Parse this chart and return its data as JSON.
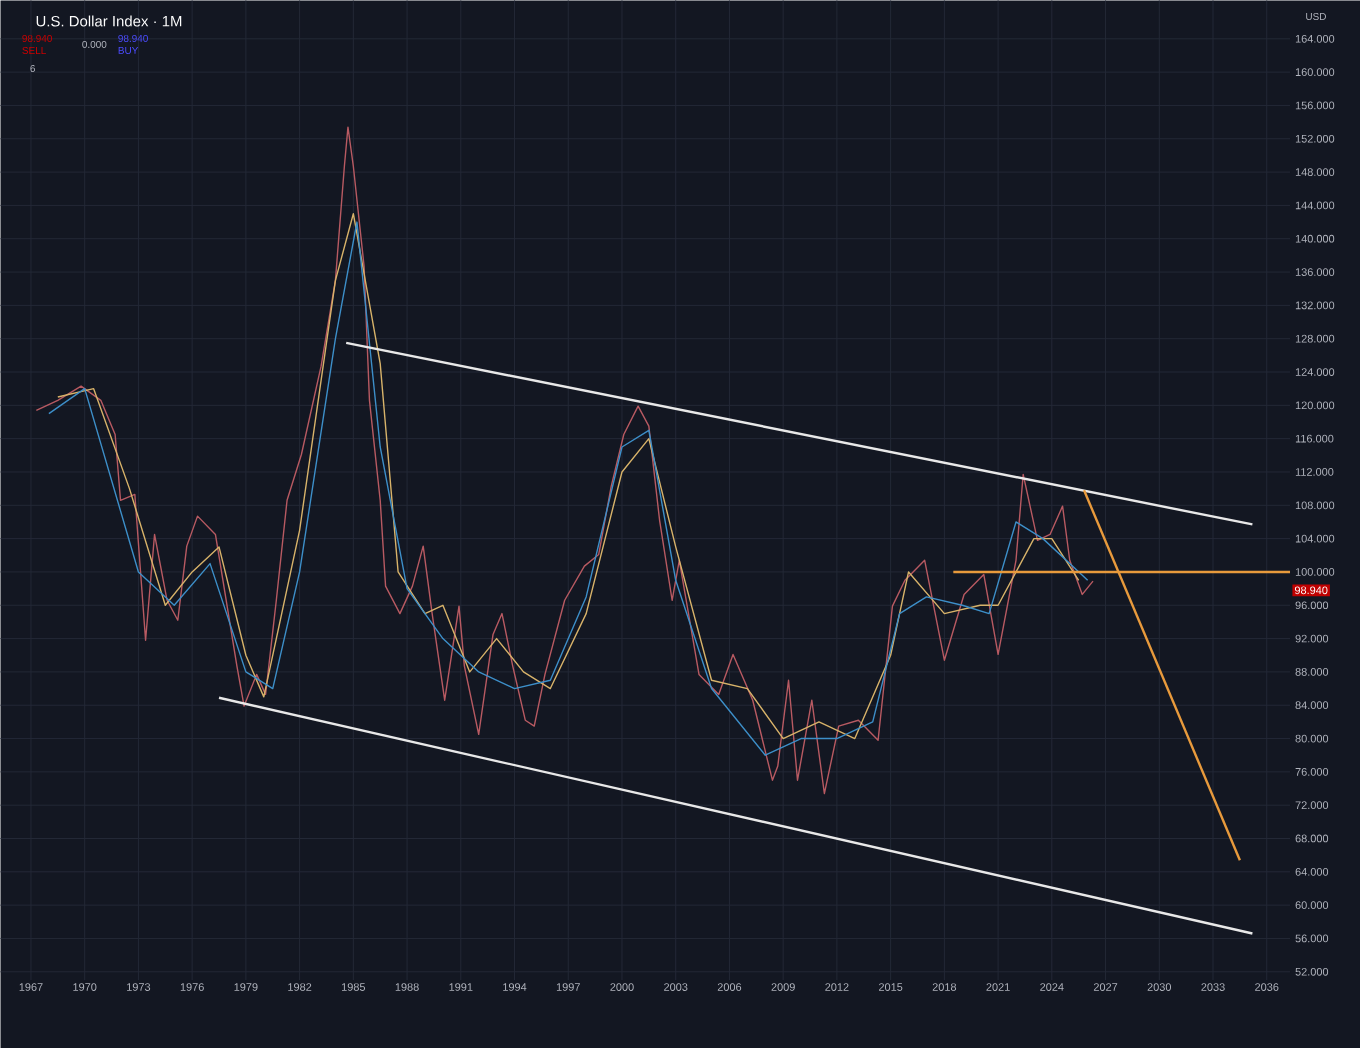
{
  "chart_data": {
    "type": "line",
    "title": "U.S. Dollar Index · 1M",
    "x": [
      1967.3,
      1968.5,
      1969.8,
      1970.9,
      1971.7,
      1972.0,
      1972.8,
      1973.4,
      1973.9,
      1974.6,
      1975.2,
      1975.7,
      1976.3,
      1977.3,
      1977.9,
      1978.5,
      1978.9,
      1979.6,
      1980.1,
      1980.7,
      1981.3,
      1982.1,
      1983.2,
      1984.0,
      1984.5,
      1984.7,
      1985.0,
      1985.6,
      1985.9,
      1986.5,
      1986.8,
      1987.6,
      1988.3,
      1988.9,
      1989.4,
      1990.1,
      1990.9,
      1991.2,
      1992.0,
      1992.8,
      1993.3,
      1993.9,
      1994.6,
      1995.1,
      1995.7,
      1996.8,
      1997.9,
      1998.7,
      1999.4,
      2000.1,
      2000.9,
      2001.5,
      2002.1,
      2002.8,
      2003.2,
      2004.3,
      2005.4,
      2006.2,
      2007.3,
      2008.4,
      2008.7,
      2009.3,
      2009.8,
      2010.6,
      2011.3,
      2012.1,
      2013.2,
      2014.3,
      2015.1,
      2015.8,
      2016.9,
      2018.0,
      2019.1,
      2020.2,
      2021.0,
      2022.0,
      2022.4,
      2023.2,
      2023.9,
      2024.6,
      2025.0,
      2025.7,
      2026.3
    ],
    "series": [
      {
        "color": "#b85a62",
        "values": [
          119.4,
          120.6,
          122.3,
          120.6,
          116.5,
          108.6,
          109.3,
          91.8,
          104.5,
          96.6,
          94.2,
          103.1,
          106.7,
          104.5,
          96.6,
          88.7,
          83.9,
          87.7,
          85.3,
          96.6,
          108.6,
          114.1,
          124.7,
          135.0,
          148.7,
          153.4,
          148.7,
          136.7,
          120.6,
          108.6,
          98.3,
          95.0,
          98.3,
          103.1,
          95.0,
          84.6,
          95.9,
          88.7,
          80.5,
          92.5,
          95.0,
          88.7,
          82.2,
          81.5,
          87.7,
          96.6,
          100.7,
          102.1,
          110.3,
          116.5,
          119.9,
          117.5,
          106.2,
          96.6,
          101.4,
          87.7,
          85.3,
          90.1,
          84.6,
          75.0,
          76.7,
          87.0,
          75.0,
          84.6,
          73.4,
          81.5,
          82.2,
          79.8,
          95.9,
          99.0,
          101.4,
          89.4,
          97.3,
          99.7,
          90.1,
          101.4,
          111.7,
          103.8,
          104.5,
          107.9,
          101.4,
          97.3,
          98.9
        ]
      },
      {
        "color": "#d8b36a",
        "x": [
          1968.5,
          1970.5,
          1972.5,
          1974.5,
          1976,
          1977.5,
          1979,
          1980,
          1982,
          1984,
          1985,
          1986.5,
          1987.5,
          1989,
          1990,
          1991.5,
          1993,
          1994.5,
          1996,
          1998,
          2000,
          2001.5,
          2003,
          2005,
          2007,
          2009,
          2011,
          2013,
          2015,
          2016,
          2018,
          2020,
          2021,
          2023,
          2024,
          2025.5
        ],
        "values": [
          121,
          122,
          110,
          96,
          100,
          103,
          90,
          85,
          105,
          135,
          143,
          125,
          100,
          95,
          96,
          88,
          92,
          88,
          86,
          95,
          112,
          116,
          103,
          87,
          86,
          80,
          82,
          80,
          90,
          100,
          95,
          96,
          96,
          104,
          104,
          99
        ]
      },
      {
        "color": "#3d8fc9",
        "x": [
          1968,
          1970,
          1973,
          1975,
          1977,
          1979,
          1980.5,
          1982,
          1984,
          1985.2,
          1986.5,
          1988,
          1990,
          1992,
          1994,
          1996,
          1998,
          2000,
          2001.5,
          2003,
          2005,
          2008,
          2010,
          2012,
          2014,
          2015.5,
          2017,
          2019,
          2020.5,
          2022,
          2023.5,
          2025,
          2026
        ],
        "values": [
          119,
          122,
          100,
          96,
          101,
          88,
          86,
          100,
          128,
          142,
          115,
          98,
          92,
          88,
          86,
          87,
          97,
          115,
          117,
          99,
          86,
          78,
          80,
          80,
          82,
          95,
          97,
          96,
          95,
          106,
          104,
          101,
          99
        ]
      },
      {
        "color": "#e8e8e8",
        "x": [
          1984.6,
          2035.2
        ],
        "values": [
          127.5,
          105.7
        ]
      },
      {
        "color": "#e8e8e8",
        "x": [
          1977.5,
          2035.2
        ],
        "values": [
          84.9,
          56.6
        ]
      },
      {
        "color": "#e89a3c",
        "x": [
          2018.5,
          2037.3
        ],
        "values": [
          100.0,
          100.0
        ]
      },
      {
        "color": "#e89a3c",
        "x": [
          2025.8,
          2034.5
        ],
        "values": [
          109.8,
          65.4
        ]
      }
    ],
    "xlim": [
      1965.3,
      2037.3
    ],
    "ylim": [
      51,
      168.6
    ],
    "xticks": [
      1967,
      1970,
      1973,
      1976,
      1979,
      1982,
      1985,
      1988,
      1991,
      1994,
      1997,
      2000,
      2003,
      2006,
      2009,
      2012,
      2015,
      2018,
      2021,
      2024,
      2027,
      2030,
      2033,
      2036
    ],
    "yticks": [
      {
        "value": 52,
        "label": "52.000"
      },
      {
        "value": 56,
        "label": "56.000"
      },
      {
        "value": 60,
        "label": "60.000"
      },
      {
        "value": 64,
        "label": "64.000"
      },
      {
        "value": 68,
        "label": "68.000"
      },
      {
        "value": 72,
        "label": "72.000"
      },
      {
        "value": 76,
        "label": "76.000"
      },
      {
        "value": 80,
        "label": "80.000"
      },
      {
        "value": 84,
        "label": "84.000"
      },
      {
        "value": 88,
        "label": "88.000"
      },
      {
        "value": 92,
        "label": "92.000"
      },
      {
        "value": 96,
        "label": "96.000"
      },
      {
        "value": 100,
        "label": "100.000"
      },
      {
        "value": 104,
        "label": "104.000"
      },
      {
        "value": 108,
        "label": "108.000"
      },
      {
        "value": 112,
        "label": "112.000"
      },
      {
        "value": 116,
        "label": "116.000"
      },
      {
        "value": 120,
        "label": "120.000"
      },
      {
        "value": 124,
        "label": "124.000"
      },
      {
        "value": 128,
        "label": "128.000"
      },
      {
        "value": 132,
        "label": "132.000"
      },
      {
        "value": 136,
        "label": "136.000"
      },
      {
        "value": 140,
        "label": "140.000"
      },
      {
        "value": 144,
        "label": "144.000"
      },
      {
        "value": 148,
        "label": "148.000"
      },
      {
        "value": 152,
        "label": "152.000"
      },
      {
        "value": 156,
        "label": "156.000"
      },
      {
        "value": 160,
        "label": "160.000"
      },
      {
        "value": 164,
        "label": "164.000"
      }
    ],
    "grid": true,
    "marker": "none",
    "line_style": "solid",
    "annotations": [
      "98.940",
      "98.940",
      "SELL",
      "0.000",
      "98.940",
      "BUY",
      "6",
      "USD"
    ]
  }
}
